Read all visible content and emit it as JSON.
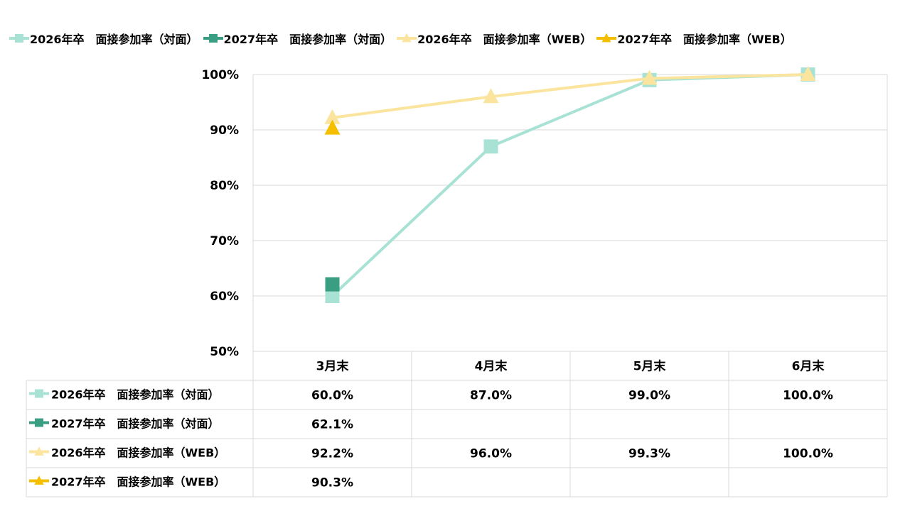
{
  "chart_data": {
    "type": "line",
    "categories": [
      "3月末",
      "4月末",
      "5月末",
      "6月末"
    ],
    "ylim": [
      50,
      100
    ],
    "yticks": [
      "100%",
      "90%",
      "80%",
      "70%",
      "60%",
      "50%"
    ],
    "ytick_values": [
      100,
      90,
      80,
      70,
      60,
      50
    ],
    "grid": true,
    "legend": "top",
    "series": [
      {
        "name": "2026年卒　面接参加率（対面）",
        "marker": "square",
        "color": "#a8e2d5",
        "values": [
          60.0,
          87.0,
          99.0,
          100.0
        ],
        "labels": [
          "60.0%",
          "87.0%",
          "99.0%",
          "100.0%"
        ]
      },
      {
        "name": "2027年卒　面接参加率（対面）",
        "marker": "square",
        "color": "#3a9e83",
        "values": [
          62.1,
          null,
          null,
          null
        ],
        "labels": [
          "62.1%",
          "",
          "",
          ""
        ]
      },
      {
        "name": "2026年卒　面接参加率（WEB）",
        "marker": "triangle",
        "color": "#fbe59e",
        "values": [
          92.2,
          96.0,
          99.3,
          100.0
        ],
        "labels": [
          "92.2%",
          "96.0%",
          "99.3%",
          "100.0%"
        ]
      },
      {
        "name": "2027年卒　面接参加率（WEB）",
        "marker": "triangle",
        "color": "#f5bf00",
        "values": [
          90.3,
          null,
          null,
          null
        ],
        "labels": [
          "90.3%",
          "",
          "",
          ""
        ]
      }
    ]
  }
}
